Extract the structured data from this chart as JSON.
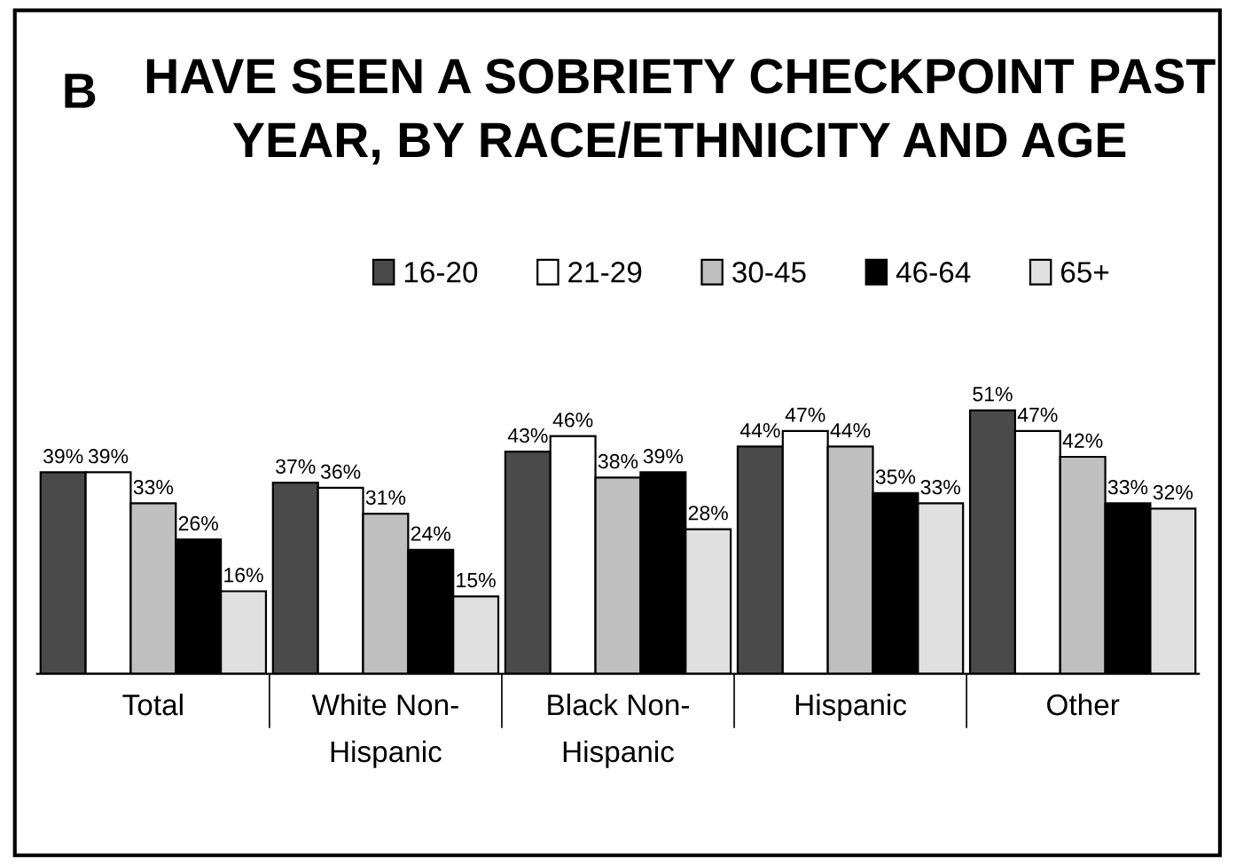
{
  "chart_data": {
    "type": "bar",
    "title": "HAVE SEEN A SOBRIETY CHECKPOINT PAST\nYEAR, BY RACE/ETHNICITY AND AGE",
    "annotations": [
      "B"
    ],
    "categories": [
      "Total",
      "White Non-\nHispanic",
      "Black Non-\nHispanic",
      "Hispanic",
      "Other"
    ],
    "series": [
      {
        "name": "16-20",
        "color": "#4a4a4a",
        "values": [
          39,
          37,
          43,
          44,
          51
        ],
        "value_labels": [
          "39%",
          "37%",
          "43%",
          "44%",
          "51%"
        ]
      },
      {
        "name": "21-29",
        "color": "#ffffff",
        "values": [
          39,
          36,
          46,
          47,
          47
        ],
        "value_labels": [
          "39%",
          "36%",
          "46%",
          "47%",
          "47%"
        ]
      },
      {
        "name": "30-45",
        "color": "#bfbfbf",
        "values": [
          33,
          31,
          38,
          44,
          42
        ],
        "value_labels": [
          "33%",
          "31%",
          "38%",
          "44%",
          "42%"
        ]
      },
      {
        "name": "46-64",
        "color": "#000000",
        "values": [
          26,
          24,
          39,
          35,
          33
        ],
        "value_labels": [
          "26%",
          "24%",
          "39%",
          "35%",
          "33%"
        ]
      },
      {
        "name": "65+",
        "color": "#e0e0e0",
        "values": [
          16,
          15,
          28,
          33,
          32
        ],
        "value_labels": [
          "16%",
          "15%",
          "28%",
          "33%",
          "32%"
        ]
      }
    ],
    "legend": "top",
    "grid": false
  }
}
